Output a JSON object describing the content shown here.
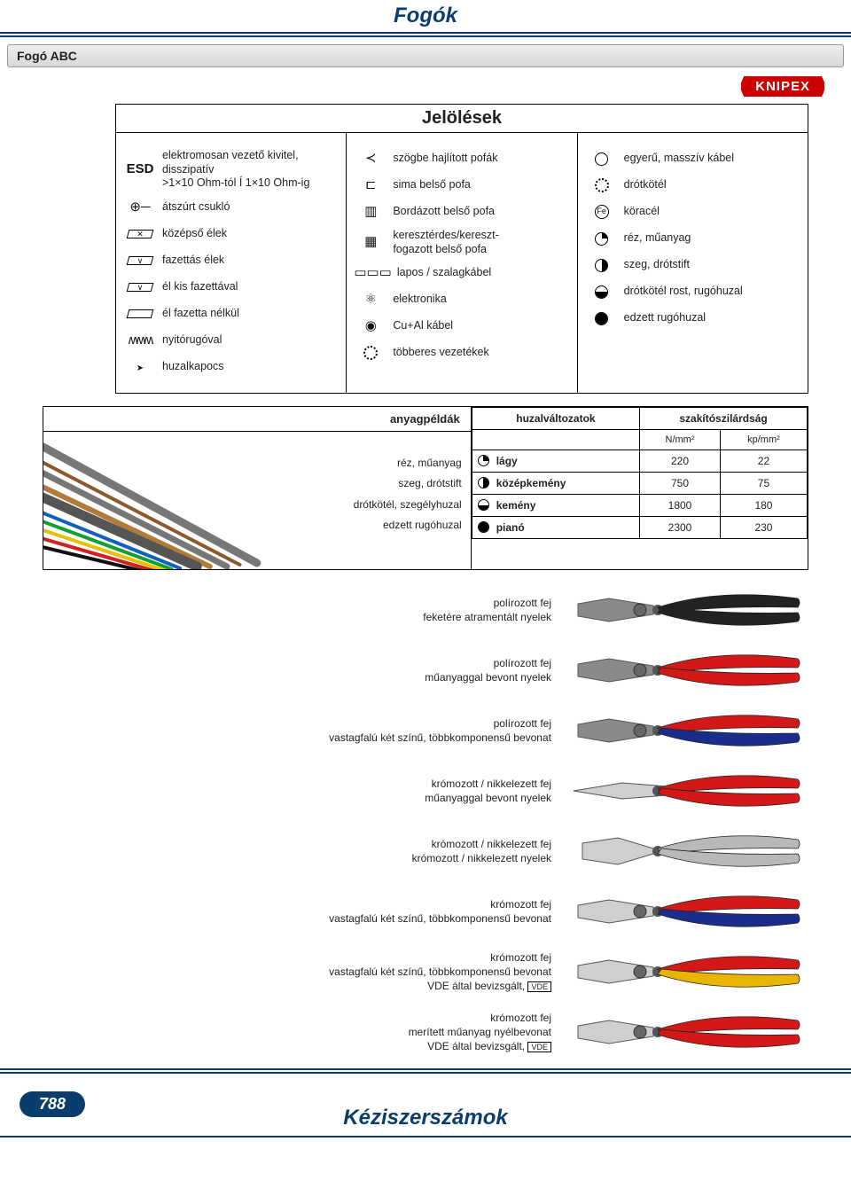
{
  "header": {
    "title": "Fogók"
  },
  "section": {
    "title": "Fogó ABC"
  },
  "brand": "KNIPEX",
  "legend": {
    "title": "Jelölések",
    "col1": [
      {
        "icon": "esd",
        "label": "elektromosan vezető kivitel,\ndisszipatív\n>1×10 Ohm-tól Í 1×10 Ohm-ig"
      },
      {
        "icon": "wrist",
        "label": "átszúrt csukló"
      },
      {
        "icon": "edge-mid",
        "label": "középső élek"
      },
      {
        "icon": "edge-facet",
        "label": "fazettás élek"
      },
      {
        "icon": "edge-small",
        "label": "él kis fazettával"
      },
      {
        "icon": "edge-none",
        "label": "él fazetta nélkül"
      },
      {
        "icon": "spring",
        "label": "nyitórugóval"
      },
      {
        "icon": "clip",
        "label": "huzalkapocs"
      }
    ],
    "col2": [
      {
        "icon": "angled-jaw",
        "label": "szögbe hajlított pofák"
      },
      {
        "icon": "smooth-jaw",
        "label": "sima belső pofa"
      },
      {
        "icon": "ribbed-jaw",
        "label": "Bordázott belső pofa"
      },
      {
        "icon": "cross-jaw",
        "label": "keresztérdes/kereszt-\nfogazott belső pofa"
      },
      {
        "icon": "flat-cable",
        "label": "lapos / szalagkábel"
      },
      {
        "icon": "atom",
        "label": "elektronika"
      },
      {
        "icon": "cual",
        "label": "Cu+Al kábel"
      },
      {
        "icon": "gear-multi",
        "label": "többeres vezetékek"
      }
    ],
    "col3": [
      {
        "icon": "single-solid",
        "label": "egyerű, masszív kábel"
      },
      {
        "icon": "gear",
        "label": "drótkötél"
      },
      {
        "icon": "fe",
        "label": "köracél"
      },
      {
        "icon": "q-tr",
        "label": "réz, műanyag"
      },
      {
        "icon": "q-right",
        "label": "szeg, drótstift"
      },
      {
        "icon": "q-bottom",
        "label": "drótkötél rost, rugóhuzal"
      },
      {
        "icon": "q-full",
        "label": "edzett rugóhuzal"
      }
    ]
  },
  "samples": {
    "title": "anyagpéldák",
    "list": [
      "réz, műanyag",
      "szeg, drótstift",
      "drótkötél, szegélyhuzal",
      "edzett rugóhuzal"
    ]
  },
  "hardness": {
    "col_variant": "huzalváltozatok",
    "col_strength": "szakítószilárdság",
    "unit1": "N/mm²",
    "unit2": "kp/mm²",
    "rows": [
      {
        "icon": "tr",
        "label": "lágy",
        "v1": "220",
        "v2": "22"
      },
      {
        "icon": "r",
        "label": "középkemény",
        "v1": "750",
        "v2": "75"
      },
      {
        "icon": "b",
        "label": "kemény",
        "v1": "1800",
        "v2": "180"
      },
      {
        "icon": "f",
        "label": "pianó",
        "v1": "2300",
        "v2": "230"
      }
    ]
  },
  "variants": [
    {
      "l1": "polírozott fej",
      "l2": "feketére atramentált nyelek",
      "handle": "#222",
      "handle2": "#222",
      "jaw": "#8a8a8a"
    },
    {
      "l1": "polírozott fej",
      "l2": "műanyaggal bevont nyelek",
      "handle": "#d31818",
      "handle2": "#d31818",
      "jaw": "#8a8a8a"
    },
    {
      "l1": "polírozott fej",
      "l2": "vastagfalú két színű, többkomponensű bevonat",
      "handle": "#d31818",
      "handle2": "#1a2d8a",
      "jaw": "#8a8a8a"
    },
    {
      "l1": "krómozott / nikkelezett fej",
      "l2": "műanyaggal bevont nyelek",
      "handle": "#d31818",
      "handle2": "#d31818",
      "jaw": "#cfcfcf",
      "long": true
    },
    {
      "l1": "krómozott / nikkelezett fej",
      "l2": "krómozott / nikkelezett nyelek",
      "handle": "#b8b8b8",
      "handle2": "#b8b8b8",
      "jaw": "#cfcfcf",
      "cutter": true
    },
    {
      "l1": "krómozott fej",
      "l2": "vastagfalú két színű, többkomponensű bevonat",
      "handle": "#d31818",
      "handle2": "#1a2d8a",
      "jaw": "#cfcfcf"
    },
    {
      "l1": "krómozott fej",
      "l2": "vastagfalú két színű, többkomponensű bevonat",
      "l3": "VDE által bevizsgált,",
      "handle": "#d31818",
      "handle2": "#e8b400",
      "jaw": "#cfcfcf"
    },
    {
      "l1": "krómozott fej",
      "l2": "merített műanyag nyélbevonat",
      "l3": "VDE által bevizsgált,",
      "handle": "#d31818",
      "handle2": "#d31818",
      "jaw": "#cfcfcf"
    }
  ],
  "footer": {
    "page": "788",
    "label": "Kéziszerszámok"
  }
}
